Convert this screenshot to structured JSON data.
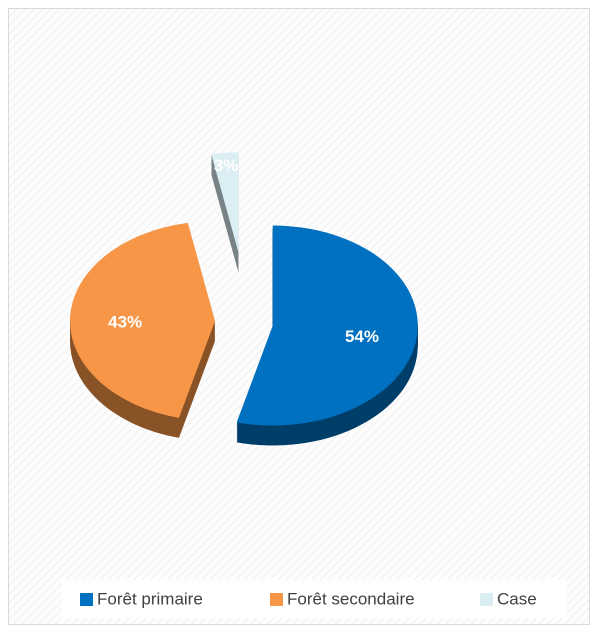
{
  "chart_data": {
    "type": "pie",
    "categories": [
      "Forêt primaire",
      "Forêt secondaire",
      "Case"
    ],
    "values": [
      54,
      43,
      3
    ],
    "value_labels": [
      "54%",
      "43%",
      "3%"
    ],
    "colors": [
      "#0070c0",
      "#f79646",
      "#dbeef4"
    ],
    "legend": "bottom"
  }
}
